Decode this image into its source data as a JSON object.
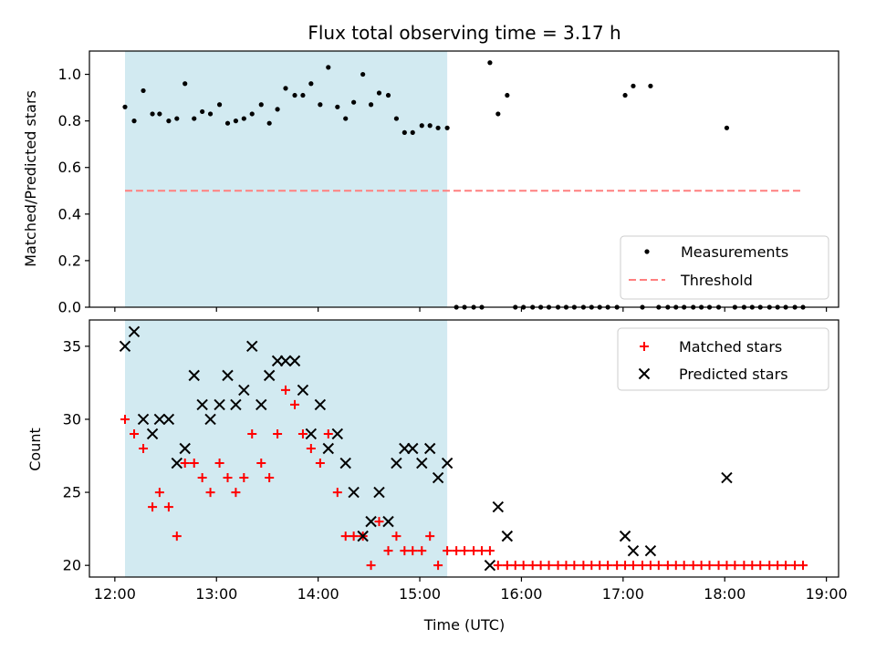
{
  "chart_data": [
    {
      "type": "scatter",
      "title": "Flux total observing time = 3.17 h",
      "ylabel": "Matched/Predicted stars",
      "xlabel": "",
      "ylim": [
        0,
        1.1
      ],
      "yticks": [
        0.0,
        0.2,
        0.4,
        0.6,
        0.8,
        1.0
      ],
      "ytick_labels": [
        "0.0",
        "0.2",
        "0.4",
        "0.6",
        "0.8",
        "1.0"
      ],
      "x_unit": "hours UTC",
      "shaded_interval": [
        12.1,
        15.27
      ],
      "shade_color": "#add8e6",
      "legend_position": "lower-right",
      "series": [
        {
          "name": "Measurements",
          "marker": "dot",
          "color": "#000000",
          "x": [
            12.1,
            12.19,
            12.28,
            12.37,
            12.44,
            12.53,
            12.61,
            12.69,
            12.78,
            12.86,
            12.94,
            13.03,
            13.11,
            13.19,
            13.27,
            13.35,
            13.44,
            13.52,
            13.6,
            13.68,
            13.77,
            13.85,
            13.93,
            14.02,
            14.1,
            14.19,
            14.27,
            14.35,
            14.44,
            14.52,
            14.6,
            14.69,
            14.77,
            14.85,
            14.93,
            15.02,
            15.1,
            15.18,
            15.27,
            15.36,
            15.44,
            15.53,
            15.61,
            15.69,
            15.77,
            15.86,
            15.94,
            16.02,
            16.11,
            16.19,
            16.27,
            16.36,
            16.44,
            16.52,
            16.61,
            16.69,
            16.77,
            16.85,
            16.94,
            17.02,
            17.1,
            17.19,
            17.27,
            17.35,
            17.44,
            17.52,
            17.6,
            17.69,
            17.77,
            17.85,
            17.94,
            18.02,
            18.1,
            18.19,
            18.27,
            18.35,
            18.44,
            18.52,
            18.6,
            18.69,
            18.77
          ],
          "y": [
            0.86,
            0.8,
            0.93,
            0.83,
            0.83,
            0.8,
            0.81,
            0.96,
            0.81,
            0.84,
            0.83,
            0.87,
            0.79,
            0.8,
            0.81,
            0.83,
            0.87,
            0.79,
            0.85,
            0.94,
            0.91,
            0.91,
            0.96,
            0.87,
            1.03,
            0.86,
            0.81,
            0.88,
            1.0,
            0.87,
            0.92,
            0.91,
            0.81,
            0.75,
            0.75,
            0.78,
            0.78,
            0.77,
            0.77,
            0,
            0,
            0,
            0,
            1.05,
            0.83,
            0.91,
            0,
            0,
            0,
            0,
            0,
            0,
            0,
            0,
            0,
            0,
            0,
            0,
            0,
            0.91,
            0.95,
            0,
            0.95,
            0,
            0,
            0,
            0,
            0,
            0,
            0,
            0,
            0.77,
            0,
            0,
            0,
            0,
            0,
            0,
            0,
            0,
            0
          ]
        },
        {
          "name": "Threshold",
          "marker": "dashed-line",
          "color": "#ff7f7f",
          "x": [
            12.1,
            18.77
          ],
          "y": [
            0.5,
            0.5
          ]
        }
      ]
    },
    {
      "type": "scatter",
      "title": "",
      "ylabel": "Count",
      "xlabel": "Time (UTC)",
      "ylim": [
        19.2,
        36.8
      ],
      "yticks": [
        20,
        25,
        30,
        35
      ],
      "ytick_labels": [
        "20",
        "25",
        "30",
        "35"
      ],
      "xlim": [
        11.75,
        19.12
      ],
      "xticks": [
        12,
        13,
        14,
        15,
        16,
        17,
        18,
        19
      ],
      "xtick_labels": [
        "12:00",
        "13:00",
        "14:00",
        "15:00",
        "16:00",
        "17:00",
        "18:00",
        "19:00"
      ],
      "shaded_interval": [
        12.1,
        15.27
      ],
      "shade_color": "#add8e6",
      "legend_position": "top-right",
      "series": [
        {
          "name": "Matched stars",
          "marker": "plus",
          "color": "#ff0000",
          "x": [
            12.1,
            12.19,
            12.28,
            12.37,
            12.44,
            12.53,
            12.61,
            12.69,
            12.78,
            12.86,
            12.94,
            13.03,
            13.11,
            13.19,
            13.27,
            13.35,
            13.44,
            13.52,
            13.6,
            13.68,
            13.77,
            13.85,
            13.93,
            14.02,
            14.1,
            14.19,
            14.27,
            14.35,
            14.44,
            14.52,
            14.6,
            14.69,
            14.77,
            14.85,
            14.93,
            15.02,
            15.1,
            15.18,
            15.27,
            15.36,
            15.44,
            15.53,
            15.61,
            15.69,
            15.77,
            15.86,
            15.94,
            16.02,
            16.11,
            16.19,
            16.27,
            16.36,
            16.44,
            16.52,
            16.61,
            16.69,
            16.77,
            16.85,
            16.94,
            17.02,
            17.1,
            17.19,
            17.27,
            17.35,
            17.44,
            17.52,
            17.6,
            17.69,
            17.77,
            17.85,
            17.94,
            18.02,
            18.1,
            18.19,
            18.27,
            18.35,
            18.44,
            18.52,
            18.6,
            18.69,
            18.77
          ],
          "y": [
            30,
            29,
            28,
            24,
            25,
            24,
            22,
            27,
            27,
            26,
            25,
            27,
            26,
            25,
            26,
            29,
            27,
            26,
            29,
            32,
            31,
            29,
            28,
            27,
            29,
            25,
            22,
            22,
            22,
            20,
            23,
            21,
            22,
            21,
            21,
            21,
            22,
            20,
            21,
            21,
            21,
            21,
            21,
            21,
            20,
            20,
            20,
            20,
            20,
            20,
            20,
            20,
            20,
            20,
            20,
            20,
            20,
            20,
            20,
            20,
            20,
            20,
            20,
            20,
            20,
            20,
            20,
            20,
            20,
            20,
            20,
            20,
            20,
            20,
            20,
            20,
            20,
            20,
            20,
            20,
            20
          ]
        },
        {
          "name": "Predicted stars",
          "marker": "x",
          "color": "#000000",
          "x": [
            12.1,
            12.19,
            12.28,
            12.37,
            12.44,
            12.53,
            12.61,
            12.69,
            12.78,
            12.86,
            12.94,
            13.03,
            13.11,
            13.19,
            13.27,
            13.35,
            13.44,
            13.52,
            13.6,
            13.68,
            13.77,
            13.85,
            13.93,
            14.02,
            14.1,
            14.19,
            14.27,
            14.35,
            14.44,
            14.52,
            14.6,
            14.69,
            14.77,
            14.85,
            14.93,
            15.02,
            15.1,
            15.18,
            15.27,
            15.69,
            15.77,
            15.86,
            17.02,
            17.1,
            17.27,
            18.02
          ],
          "y": [
            35,
            36,
            30,
            29,
            30,
            30,
            27,
            28,
            33,
            31,
            30,
            31,
            33,
            31,
            32,
            35,
            31,
            33,
            34,
            34,
            34,
            32,
            29,
            31,
            28,
            29,
            27,
            25,
            22,
            23,
            25,
            23,
            27,
            28,
            28,
            27,
            28,
            26,
            27,
            20,
            24,
            22,
            22,
            21,
            21,
            26
          ]
        }
      ]
    }
  ]
}
